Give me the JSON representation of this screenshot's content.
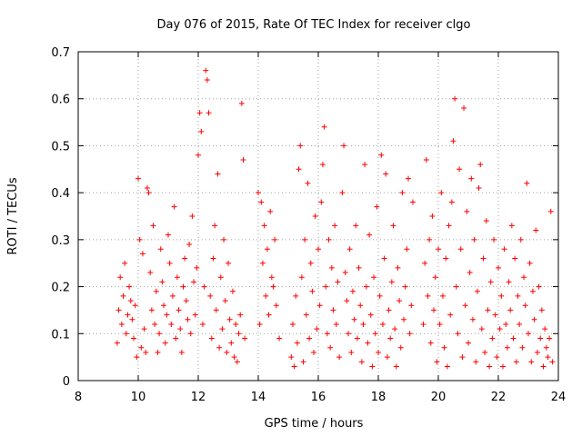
{
  "chart_data": {
    "type": "scatter",
    "title": "Day 076 of 2015, Rate Of TEC Index for receiver clgo",
    "xlabel": "GPS time / hours",
    "ylabel": "ROTI / TECUs",
    "xlim": [
      8,
      24
    ],
    "ylim": [
      0,
      0.7
    ],
    "xticks": [
      8,
      10,
      12,
      14,
      16,
      18,
      20,
      22,
      24
    ],
    "xtick_labels": [
      "8",
      "10",
      "12",
      "14",
      "16",
      "18",
      "20",
      "22",
      "24"
    ],
    "yticks": [
      0,
      0.1,
      0.2,
      0.3,
      0.4,
      0.5,
      0.6,
      0.7
    ],
    "ytick_labels": [
      "0",
      "0.1",
      "0.2",
      "0.3",
      "0.4",
      "0.5",
      "0.6",
      "0.7"
    ],
    "grid": true,
    "marker": "+",
    "color": "#ff0000",
    "series": [
      {
        "name": "ROTI",
        "points": [
          [
            9.3,
            0.08
          ],
          [
            9.35,
            0.15
          ],
          [
            9.4,
            0.22
          ],
          [
            9.45,
            0.12
          ],
          [
            9.5,
            0.18
          ],
          [
            9.55,
            0.25
          ],
          [
            9.6,
            0.1
          ],
          [
            9.65,
            0.14
          ],
          [
            9.7,
            0.2
          ],
          [
            9.75,
            0.17
          ],
          [
            9.8,
            0.13
          ],
          [
            9.85,
            0.09
          ],
          [
            9.9,
            0.16
          ],
          [
            9.95,
            0.05
          ],
          [
            10.0,
            0.43
          ],
          [
            10.05,
            0.3
          ],
          [
            10.1,
            0.07
          ],
          [
            10.15,
            0.27
          ],
          [
            10.2,
            0.11
          ],
          [
            10.25,
            0.06
          ],
          [
            10.3,
            0.41
          ],
          [
            10.35,
            0.4
          ],
          [
            10.4,
            0.23
          ],
          [
            10.45,
            0.15
          ],
          [
            10.5,
            0.33
          ],
          [
            10.55,
            0.12
          ],
          [
            10.6,
            0.19
          ],
          [
            10.65,
            0.06
          ],
          [
            10.7,
            0.1
          ],
          [
            10.75,
            0.28
          ],
          [
            10.8,
            0.21
          ],
          [
            10.85,
            0.16
          ],
          [
            10.9,
            0.08
          ],
          [
            10.95,
            0.14
          ],
          [
            11.0,
            0.31
          ],
          [
            11.05,
            0.25
          ],
          [
            11.1,
            0.12
          ],
          [
            11.15,
            0.18
          ],
          [
            11.2,
            0.37
          ],
          [
            11.25,
            0.09
          ],
          [
            11.3,
            0.22
          ],
          [
            11.35,
            0.15
          ],
          [
            11.4,
            0.11
          ],
          [
            11.45,
            0.06
          ],
          [
            11.5,
            0.2
          ],
          [
            11.55,
            0.26
          ],
          [
            11.6,
            0.17
          ],
          [
            11.65,
            0.13
          ],
          [
            11.7,
            0.29
          ],
          [
            11.75,
            0.1
          ],
          [
            11.8,
            0.35
          ],
          [
            11.85,
            0.21
          ],
          [
            11.9,
            0.14
          ],
          [
            11.95,
            0.24
          ],
          [
            12.0,
            0.48
          ],
          [
            12.05,
            0.57
          ],
          [
            12.1,
            0.53
          ],
          [
            12.15,
            0.12
          ],
          [
            12.2,
            0.2
          ],
          [
            12.25,
            0.66
          ],
          [
            12.3,
            0.64
          ],
          [
            12.35,
            0.57
          ],
          [
            12.4,
            0.18
          ],
          [
            12.45,
            0.09
          ],
          [
            12.5,
            0.26
          ],
          [
            12.55,
            0.33
          ],
          [
            12.6,
            0.15
          ],
          [
            12.65,
            0.44
          ],
          [
            12.7,
            0.07
          ],
          [
            12.75,
            0.22
          ],
          [
            12.8,
            0.11
          ],
          [
            12.85,
            0.3
          ],
          [
            12.9,
            0.17
          ],
          [
            12.95,
            0.06
          ],
          [
            13.0,
            0.25
          ],
          [
            13.05,
            0.13
          ],
          [
            13.1,
            0.08
          ],
          [
            13.15,
            0.19
          ],
          [
            13.2,
            0.05
          ],
          [
            13.25,
            0.12
          ],
          [
            13.3,
            0.04
          ],
          [
            13.35,
            0.1
          ],
          [
            13.4,
            0.14
          ],
          [
            13.45,
            0.59
          ],
          [
            13.5,
            0.47
          ],
          [
            13.55,
            0.09
          ],
          [
            14.0,
            0.4
          ],
          [
            14.05,
            0.12
          ],
          [
            14.1,
            0.38
          ],
          [
            14.15,
            0.25
          ],
          [
            14.2,
            0.33
          ],
          [
            14.25,
            0.18
          ],
          [
            14.3,
            0.28
          ],
          [
            14.35,
            0.14
          ],
          [
            14.4,
            0.36
          ],
          [
            14.45,
            0.22
          ],
          [
            14.5,
            0.2
          ],
          [
            14.55,
            0.3
          ],
          [
            14.6,
            0.16
          ],
          [
            14.7,
            0.09
          ],
          [
            15.1,
            0.05
          ],
          [
            15.15,
            0.12
          ],
          [
            15.2,
            0.03
          ],
          [
            15.25,
            0.18
          ],
          [
            15.3,
            0.08
          ],
          [
            15.35,
            0.45
          ],
          [
            15.4,
            0.5
          ],
          [
            15.45,
            0.22
          ],
          [
            15.5,
            0.04
          ],
          [
            15.55,
            0.3
          ],
          [
            15.6,
            0.14
          ],
          [
            15.65,
            0.42
          ],
          [
            15.7,
            0.09
          ],
          [
            15.75,
            0.25
          ],
          [
            15.8,
            0.19
          ],
          [
            15.85,
            0.06
          ],
          [
            15.9,
            0.35
          ],
          [
            15.95,
            0.11
          ],
          [
            16.0,
            0.28
          ],
          [
            16.05,
            0.16
          ],
          [
            16.1,
            0.38
          ],
          [
            16.15,
            0.46
          ],
          [
            16.2,
            0.54
          ],
          [
            16.25,
            0.2
          ],
          [
            16.3,
            0.1
          ],
          [
            16.35,
            0.3
          ],
          [
            16.4,
            0.07
          ],
          [
            16.45,
            0.24
          ],
          [
            16.5,
            0.15
          ],
          [
            16.55,
            0.33
          ],
          [
            16.6,
            0.12
          ],
          [
            16.65,
            0.21
          ],
          [
            16.7,
            0.05
          ],
          [
            16.8,
            0.4
          ],
          [
            16.85,
            0.5
          ],
          [
            16.9,
            0.23
          ],
          [
            16.95,
            0.17
          ],
          [
            17.0,
            0.1
          ],
          [
            17.05,
            0.28
          ],
          [
            17.1,
            0.06
          ],
          [
            17.15,
            0.19
          ],
          [
            17.2,
            0.13
          ],
          [
            17.25,
            0.33
          ],
          [
            17.3,
            0.09
          ],
          [
            17.35,
            0.24
          ],
          [
            17.4,
            0.16
          ],
          [
            17.45,
            0.04
          ],
          [
            17.5,
            0.12
          ],
          [
            17.55,
            0.46
          ],
          [
            17.6,
            0.2
          ],
          [
            17.65,
            0.08
          ],
          [
            17.7,
            0.31
          ],
          [
            17.75,
            0.14
          ],
          [
            17.8,
            0.03
          ],
          [
            17.85,
            0.22
          ],
          [
            17.9,
            0.1
          ],
          [
            17.95,
            0.37
          ],
          [
            18.0,
            0.06
          ],
          [
            18.05,
            0.18
          ],
          [
            18.1,
            0.48
          ],
          [
            18.15,
            0.12
          ],
          [
            18.2,
            0.26
          ],
          [
            18.25,
            0.44
          ],
          [
            18.3,
            0.05
          ],
          [
            18.35,
            0.15
          ],
          [
            18.4,
            0.09
          ],
          [
            18.45,
            0.21
          ],
          [
            18.5,
            0.33
          ],
          [
            18.55,
            0.11
          ],
          [
            18.6,
            0.03
          ],
          [
            18.65,
            0.24
          ],
          [
            18.7,
            0.17
          ],
          [
            18.75,
            0.07
          ],
          [
            18.8,
            0.4
          ],
          [
            18.85,
            0.13
          ],
          [
            18.9,
            0.2
          ],
          [
            18.95,
            0.28
          ],
          [
            19.0,
            0.43
          ],
          [
            19.05,
            0.1
          ],
          [
            19.1,
            0.16
          ],
          [
            19.15,
            0.38
          ],
          [
            19.5,
            0.12
          ],
          [
            19.55,
            0.25
          ],
          [
            19.6,
            0.47
          ],
          [
            19.65,
            0.18
          ],
          [
            19.7,
            0.3
          ],
          [
            19.75,
            0.08
          ],
          [
            19.8,
            0.35
          ],
          [
            19.85,
            0.15
          ],
          [
            19.9,
            0.22
          ],
          [
            19.95,
            0.04
          ],
          [
            20.0,
            0.28
          ],
          [
            20.05,
            0.12
          ],
          [
            20.1,
            0.4
          ],
          [
            20.15,
            0.18
          ],
          [
            20.2,
            0.07
          ],
          [
            20.25,
            0.26
          ],
          [
            20.3,
            0.03
          ],
          [
            20.35,
            0.33
          ],
          [
            20.4,
            0.14
          ],
          [
            20.45,
            0.38
          ],
          [
            20.5,
            0.51
          ],
          [
            20.55,
            0.6
          ],
          [
            20.6,
            0.2
          ],
          [
            20.65,
            0.1
          ],
          [
            20.7,
            0.45
          ],
          [
            20.75,
            0.28
          ],
          [
            20.8,
            0.05
          ],
          [
            20.85,
            0.58
          ],
          [
            20.9,
            0.16
          ],
          [
            20.95,
            0.36
          ],
          [
            21.0,
            0.08
          ],
          [
            21.05,
            0.23
          ],
          [
            21.1,
            0.43
          ],
          [
            21.15,
            0.13
          ],
          [
            21.2,
            0.3
          ],
          [
            21.25,
            0.04
          ],
          [
            21.3,
            0.19
          ],
          [
            21.35,
            0.41
          ],
          [
            21.4,
            0.46
          ],
          [
            21.45,
            0.11
          ],
          [
            21.5,
            0.26
          ],
          [
            21.55,
            0.06
          ],
          [
            21.6,
            0.34
          ],
          [
            21.65,
            0.15
          ],
          [
            21.7,
            0.03
          ],
          [
            21.75,
            0.21
          ],
          [
            21.8,
            0.09
          ],
          [
            21.85,
            0.3
          ],
          [
            21.9,
            0.14
          ],
          [
            21.95,
            0.05
          ],
          [
            22.0,
            0.24
          ],
          [
            22.05,
            0.11
          ],
          [
            22.1,
            0.18
          ],
          [
            22.15,
            0.03
          ],
          [
            22.2,
            0.28
          ],
          [
            22.25,
            0.12
          ],
          [
            22.3,
            0.07
          ],
          [
            22.35,
            0.21
          ],
          [
            22.4,
            0.15
          ],
          [
            22.45,
            0.33
          ],
          [
            22.5,
            0.09
          ],
          [
            22.55,
            0.26
          ],
          [
            22.6,
            0.04
          ],
          [
            22.65,
            0.18
          ],
          [
            22.7,
            0.12
          ],
          [
            22.75,
            0.3
          ],
          [
            22.8,
            0.07
          ],
          [
            22.85,
            0.22
          ],
          [
            22.9,
            0.16
          ],
          [
            22.95,
            0.42
          ],
          [
            23.0,
            0.1
          ],
          [
            23.05,
            0.25
          ],
          [
            23.1,
            0.04
          ],
          [
            23.15,
            0.19
          ],
          [
            23.2,
            0.13
          ],
          [
            23.25,
            0.32
          ],
          [
            23.3,
            0.06
          ],
          [
            23.35,
            0.2
          ],
          [
            23.4,
            0.09
          ],
          [
            23.45,
            0.15
          ],
          [
            23.5,
            0.03
          ],
          [
            23.55,
            0.11
          ],
          [
            23.6,
            0.07
          ],
          [
            23.65,
            0.05
          ],
          [
            23.7,
            0.09
          ],
          [
            23.75,
            0.36
          ],
          [
            23.8,
            0.04
          ]
        ]
      }
    ]
  }
}
